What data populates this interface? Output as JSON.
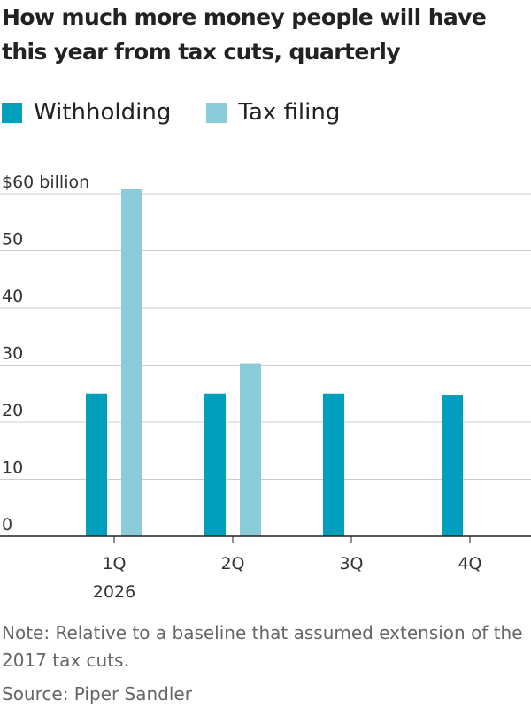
{
  "title": "How much more money people will have this year from tax cuts, quarterly",
  "legend": [
    {
      "label": "Withholding",
      "color": "#009fbd"
    },
    {
      "label": "Tax filing",
      "color": "#8ccbd9"
    }
  ],
  "note": "Note: Relative to a baseline that assumed extension of the 2017 tax cuts.",
  "source": "Source: Piper Sandler",
  "chart_data": {
    "type": "bar",
    "title": "How much more money people will have this year from tax cuts, quarterly",
    "categories": [
      "1Q",
      "2Q",
      "3Q",
      "4Q"
    ],
    "category_sublabels": [
      "2026",
      "",
      "",
      ""
    ],
    "series": [
      {
        "name": "Withholding",
        "color": "#009fbd",
        "values": [
          25,
          25,
          25,
          24.8
        ]
      },
      {
        "name": "Tax filing",
        "color": "#8ccbd9",
        "values": [
          60.8,
          30.3,
          null,
          null
        ]
      }
    ],
    "ylim": [
      0,
      60
    ],
    "yticks": [
      0,
      10,
      20,
      30,
      40,
      50,
      60
    ],
    "ytick_labels": [
      "0",
      "10",
      "20",
      "30",
      "40",
      "50",
      "$60 billion"
    ],
    "xlabel": "",
    "ylabel": "",
    "grid": true
  }
}
